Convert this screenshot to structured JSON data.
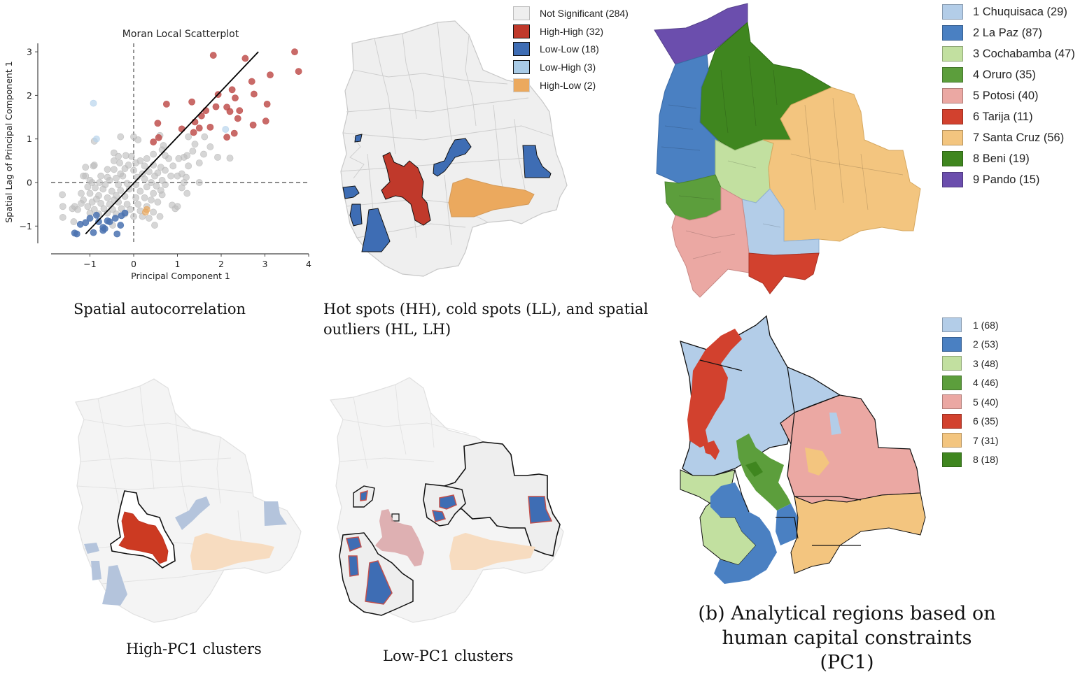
{
  "captions": {
    "spatial_autocorrelation": "Spatial autocorrelation",
    "hotspots": "Hot spots (HH), cold spots (LL), and spatial outliers (HL, LH)",
    "hotspots_line1": "Hot spots (HH), cold spots (LL), and spatial",
    "hotspots_line2": "outliers (HL, LH)",
    "high_pc1": "High-PC1 clusters",
    "low_pc1": "Low-PC1 clusters",
    "analytical_line1": "(b) Analytical regions based on",
    "analytical_line2": "human capital constraints (PC1)"
  },
  "lisa_legend": {
    "items": [
      {
        "label": "Not Significant (284)",
        "color": "#eeeeee",
        "border": "#bbbbbb"
      },
      {
        "label": "High-High (32)",
        "color": "#c0392b",
        "border": "#111111"
      },
      {
        "label": "Low-Low (18)",
        "color": "#3e6db4",
        "border": "#111111"
      },
      {
        "label": "Low-High (3)",
        "color": "#a9cbe6",
        "border": "#111111"
      },
      {
        "label": "High-Low (2)",
        "color": "#eba95e",
        "border": "#cccccc"
      }
    ]
  },
  "department_legend": {
    "items": [
      {
        "label": "1 Chuquisaca (29)",
        "color": "#b3cde8"
      },
      {
        "label": "2 La Paz (87)",
        "color": "#4a80c2"
      },
      {
        "label": "3 Cochabamba (47)",
        "color": "#c2e0a0"
      },
      {
        "label": "4 Oruro (35)",
        "color": "#5c9e3c"
      },
      {
        "label": "5 Potosi (40)",
        "color": "#eba8a3"
      },
      {
        "label": "6 Tarija (11)",
        "color": "#d2412e"
      },
      {
        "label": "7 Santa Cruz (56)",
        "color": "#f3c57f"
      },
      {
        "label": "8 Beni (19)",
        "color": "#3f861f"
      },
      {
        "label": "9 Pando (15)",
        "color": "#6b4ead"
      }
    ]
  },
  "region_legend": {
    "items": [
      {
        "label": "1 (68)",
        "color": "#b3cde8"
      },
      {
        "label": "2 (53)",
        "color": "#4a80c2"
      },
      {
        "label": "3 (48)",
        "color": "#c2e0a0"
      },
      {
        "label": "4 (46)",
        "color": "#5c9e3c"
      },
      {
        "label": "5 (40)",
        "color": "#eba8a3"
      },
      {
        "label": "6 (35)",
        "color": "#d2412e"
      },
      {
        "label": "7 (31)",
        "color": "#f3c57f"
      },
      {
        "label": "8 (18)",
        "color": "#3f861f"
      }
    ]
  },
  "chart_data": {
    "type": "scatter",
    "title": "Moran Local Scatterplot",
    "xlabel": "Principal Component 1",
    "ylabel": "Spatial Lag of Principal Component 1",
    "xlim": [
      -1.9,
      4.0
    ],
    "ylim": [
      -1.4,
      3.2
    ],
    "xticks": [
      "−1",
      "0",
      "1",
      "2",
      "3",
      "4"
    ],
    "yticks": [
      "−1",
      "0",
      "1",
      "2",
      "3"
    ],
    "reference_lines": {
      "x": 0,
      "y": 0,
      "style": "dashed"
    },
    "fit_line": {
      "x": [
        -1.1,
        2.85
      ],
      "y": [
        -1.18,
        3.0
      ]
    },
    "series": [
      {
        "name": "High-High",
        "color": "#c0504d",
        "points": [
          [
            1.82,
            2.92
          ],
          [
            2.55,
            2.85
          ],
          [
            3.68,
            3.0
          ],
          [
            3.77,
            2.55
          ],
          [
            3.12,
            2.47
          ],
          [
            2.7,
            2.32
          ],
          [
            2.25,
            2.13
          ],
          [
            1.93,
            2.02
          ],
          [
            2.32,
            1.94
          ],
          [
            2.75,
            2.03
          ],
          [
            0.75,
            1.8
          ],
          [
            1.33,
            1.85
          ],
          [
            3.05,
            1.8
          ],
          [
            1.88,
            1.74
          ],
          [
            2.13,
            1.73
          ],
          [
            2.2,
            1.63
          ],
          [
            2.42,
            1.65
          ],
          [
            1.65,
            1.65
          ],
          [
            1.55,
            1.53
          ],
          [
            2.38,
            1.47
          ],
          [
            1.4,
            1.39
          ],
          [
            3.02,
            1.41
          ],
          [
            0.55,
            1.36
          ],
          [
            2.73,
            1.32
          ],
          [
            1.1,
            1.23
          ],
          [
            1.5,
            1.25
          ],
          [
            1.75,
            1.27
          ],
          [
            1.37,
            1.15
          ],
          [
            2.3,
            1.13
          ],
          [
            0.57,
            1.03
          ],
          [
            2.13,
            1.04
          ],
          [
            0.45,
            0.93
          ]
        ]
      },
      {
        "name": "Low-Low",
        "color": "#4a72b0",
        "points": [
          [
            -1.35,
            -1.16
          ],
          [
            -1.3,
            -1.18
          ],
          [
            -1.22,
            -0.96
          ],
          [
            -0.92,
            -1.15
          ],
          [
            -0.7,
            -1.03
          ],
          [
            -0.7,
            -1.1
          ],
          [
            -0.6,
            -0.88
          ],
          [
            -0.38,
            -1.18
          ],
          [
            -0.3,
            -0.98
          ],
          [
            -0.28,
            -0.76
          ],
          [
            -0.85,
            -0.75
          ],
          [
            -1.0,
            -0.82
          ],
          [
            -0.66,
            -1.06
          ],
          [
            -0.42,
            -0.82
          ],
          [
            -0.55,
            -0.9
          ],
          [
            -0.8,
            -0.9
          ],
          [
            -1.1,
            -0.92
          ],
          [
            -0.2,
            -0.7
          ]
        ]
      },
      {
        "name": "Low-High",
        "color": "#b8d4ec",
        "points": [
          [
            -0.92,
            1.82
          ],
          [
            2.1,
            1.22
          ],
          [
            -0.85,
            1.0
          ]
        ]
      },
      {
        "name": "High-Low",
        "color": "#e8a860",
        "points": [
          [
            0.27,
            -0.68
          ],
          [
            0.3,
            -0.62
          ]
        ]
      },
      {
        "name": "Not Significant",
        "color": "#bdbdbd",
        "points": [
          [
            -1.63,
            -0.28
          ],
          [
            -1.62,
            -0.55
          ],
          [
            -1.62,
            -0.8
          ],
          [
            -1.37,
            -0.9
          ],
          [
            -1.35,
            -0.55
          ],
          [
            -1.2,
            -0.25
          ],
          [
            -1.1,
            0.35
          ],
          [
            -1.1,
            0.15
          ],
          [
            -0.92,
            0.38
          ],
          [
            -0.9,
            0.95
          ],
          [
            -0.3,
            1.05
          ],
          [
            0.0,
            1.05
          ],
          [
            0.1,
            0.98
          ],
          [
            0.6,
            1.08
          ],
          [
            0.68,
            0.85
          ],
          [
            1.25,
            1.05
          ],
          [
            1.62,
            1.05
          ],
          [
            1.75,
            0.82
          ],
          [
            1.4,
            0.88
          ],
          [
            1.35,
            0.72
          ],
          [
            1.22,
            0.62
          ],
          [
            1.15,
            0.58
          ],
          [
            1.6,
            0.65
          ],
          [
            1.92,
            0.58
          ],
          [
            2.2,
            0.56
          ],
          [
            0.8,
            0.55
          ],
          [
            1.03,
            0.55
          ],
          [
            1.5,
            0.45
          ],
          [
            1.25,
            0.38
          ],
          [
            0.9,
            0.38
          ],
          [
            0.65,
            0.75
          ],
          [
            0.72,
            0.62
          ],
          [
            -0.45,
            0.68
          ],
          [
            -0.35,
            0.6
          ],
          [
            -0.18,
            0.62
          ],
          [
            -0.05,
            0.6
          ],
          [
            0.45,
            0.65
          ],
          [
            0.3,
            0.55
          ],
          [
            0.15,
            0.5
          ],
          [
            -0.45,
            0.5
          ],
          [
            -0.32,
            0.45
          ],
          [
            0.05,
            0.45
          ],
          [
            0.25,
            0.38
          ],
          [
            0.45,
            0.4
          ],
          [
            0.62,
            0.35
          ],
          [
            -0.6,
            0.3
          ],
          [
            -0.45,
            0.3
          ],
          [
            -0.2,
            0.32
          ],
          [
            0.0,
            0.28
          ],
          [
            0.35,
            0.25
          ],
          [
            0.55,
            0.22
          ],
          [
            0.72,
            0.28
          ],
          [
            0.85,
            0.15
          ],
          [
            1.0,
            0.15
          ],
          [
            1.1,
            0.2
          ],
          [
            1.2,
            0.12
          ],
          [
            1.15,
            0.0
          ],
          [
            -0.75,
            0.15
          ],
          [
            -0.6,
            0.12
          ],
          [
            -0.4,
            0.1
          ],
          [
            -0.25,
            0.15
          ],
          [
            0.08,
            0.12
          ],
          [
            0.25,
            0.08
          ],
          [
            0.48,
            0.15
          ],
          [
            0.65,
            0.05
          ],
          [
            1.5,
            0.0
          ],
          [
            -0.95,
            0.0
          ],
          [
            -0.78,
            0.0
          ],
          [
            -0.55,
            0.05
          ],
          [
            -0.35,
            -0.05
          ],
          [
            -0.15,
            -0.02
          ],
          [
            0.05,
            -0.05
          ],
          [
            0.3,
            -0.1
          ],
          [
            0.52,
            -0.08
          ],
          [
            0.72,
            -0.05
          ],
          [
            -1.05,
            -0.1
          ],
          [
            -0.88,
            -0.12
          ],
          [
            -0.7,
            -0.15
          ],
          [
            -0.5,
            -0.2
          ],
          [
            -0.3,
            -0.18
          ],
          [
            -0.1,
            -0.15
          ],
          [
            0.15,
            -0.2
          ],
          [
            0.45,
            -0.25
          ],
          [
            0.65,
            -0.28
          ],
          [
            1.1,
            -0.12
          ],
          [
            1.22,
            -0.25
          ],
          [
            -1.0,
            -0.25
          ],
          [
            -0.8,
            -0.3
          ],
          [
            -0.6,
            -0.35
          ],
          [
            -0.4,
            -0.3
          ],
          [
            -0.2,
            -0.32
          ],
          [
            0.05,
            -0.35
          ],
          [
            0.25,
            -0.35
          ],
          [
            0.4,
            -0.4
          ],
          [
            -1.15,
            -0.4
          ],
          [
            -0.95,
            -0.45
          ],
          [
            -0.75,
            -0.48
          ],
          [
            -0.55,
            -0.5
          ],
          [
            -0.35,
            -0.45
          ],
          [
            -0.15,
            -0.5
          ],
          [
            0.1,
            -0.5
          ],
          [
            0.3,
            -0.55
          ],
          [
            0.55,
            -0.45
          ],
          [
            -1.4,
            -0.6
          ],
          [
            -1.28,
            -0.62
          ],
          [
            -1.05,
            -0.55
          ],
          [
            -0.9,
            -0.62
          ],
          [
            -0.68,
            -0.6
          ],
          [
            -0.48,
            -0.62
          ],
          [
            -0.28,
            -0.6
          ],
          [
            -0.08,
            -0.62
          ],
          [
            0.15,
            -0.65
          ],
          [
            0.45,
            -0.68
          ],
          [
            0.6,
            -0.78
          ],
          [
            0.88,
            -0.52
          ],
          [
            0.95,
            -0.6
          ],
          [
            1.0,
            -0.55
          ],
          [
            -1.0,
            -0.7
          ],
          [
            -0.8,
            -0.72
          ],
          [
            -0.6,
            -0.7
          ],
          [
            -0.4,
            -0.72
          ],
          [
            -0.2,
            -0.72
          ],
          [
            0.0,
            -0.78
          ],
          [
            0.2,
            -0.78
          ],
          [
            0.35,
            -0.82
          ],
          [
            -0.48,
            -0.98
          ],
          [
            0.48,
            -0.98
          ],
          [
            -0.9,
            0.4
          ],
          [
            -1.15,
            0.15
          ],
          [
            -1.0,
            0.05
          ],
          [
            -0.3,
            0.2
          ],
          [
            0.2,
            0.2
          ],
          [
            -0.65,
            -0.05
          ],
          [
            -0.45,
            -0.4
          ],
          [
            -0.12,
            0.4
          ],
          [
            0.4,
            0.0
          ],
          [
            0.62,
            -0.18
          ],
          [
            -0.85,
            -0.38
          ],
          [
            -1.2,
            -0.48
          ]
        ]
      }
    ]
  }
}
